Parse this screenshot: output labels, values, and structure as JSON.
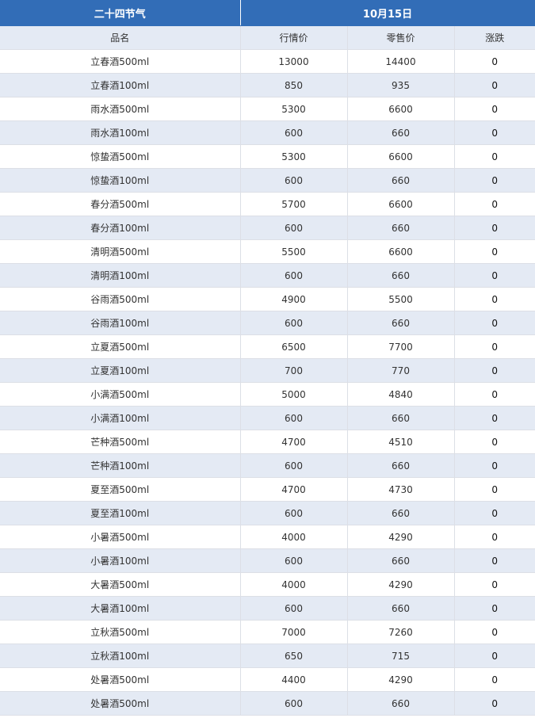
{
  "header": {
    "group": "二十四节气",
    "date": "10月15日"
  },
  "columns": [
    "品名",
    "行情价",
    "零售价",
    "涨跌"
  ],
  "rows": [
    [
      "立春酒500ml",
      "13000",
      "14400",
      "0"
    ],
    [
      "立春酒100ml",
      "850",
      "935",
      "0"
    ],
    [
      "雨水酒500ml",
      "5300",
      "6600",
      "0"
    ],
    [
      "雨水酒100ml",
      "600",
      "660",
      "0"
    ],
    [
      "惊蛰酒500ml",
      "5300",
      "6600",
      "0"
    ],
    [
      "惊蛰酒100ml",
      "600",
      "660",
      "0"
    ],
    [
      "春分酒500ml",
      "5700",
      "6600",
      "0"
    ],
    [
      "春分酒100ml",
      "600",
      "660",
      "0"
    ],
    [
      "清明酒500ml",
      "5500",
      "6600",
      "0"
    ],
    [
      "清明酒100ml",
      "600",
      "660",
      "0"
    ],
    [
      "谷雨酒500ml",
      "4900",
      "5500",
      "0"
    ],
    [
      "谷雨酒100ml",
      "600",
      "660",
      "0"
    ],
    [
      "立夏酒500ml",
      "6500",
      "7700",
      "0"
    ],
    [
      "立夏酒100ml",
      "700",
      "770",
      "0"
    ],
    [
      "小满酒500ml",
      "5000",
      "4840",
      "0"
    ],
    [
      "小满酒100ml",
      "600",
      "660",
      "0"
    ],
    [
      "芒种酒500ml",
      "4700",
      "4510",
      "0"
    ],
    [
      "芒种酒100ml",
      "600",
      "660",
      "0"
    ],
    [
      "夏至酒500ml",
      "4700",
      "4730",
      "0"
    ],
    [
      "夏至酒100ml",
      "600",
      "660",
      "0"
    ],
    [
      "小暑酒500ml",
      "4000",
      "4290",
      "0"
    ],
    [
      "小暑酒100ml",
      "600",
      "660",
      "0"
    ],
    [
      "大暑酒500ml",
      "4000",
      "4290",
      "0"
    ],
    [
      "大暑酒100ml",
      "600",
      "660",
      "0"
    ],
    [
      "立秋酒500ml",
      "7000",
      "7260",
      "0"
    ],
    [
      "立秋酒100ml",
      "650",
      "715",
      "0"
    ],
    [
      "处暑酒500ml",
      "4400",
      "4290",
      "0"
    ],
    [
      "处暑酒500ml",
      "600",
      "660",
      "0"
    ]
  ],
  "colors": {
    "header_bg": "#326db7",
    "stripe_bg": "#e4eaf4"
  }
}
